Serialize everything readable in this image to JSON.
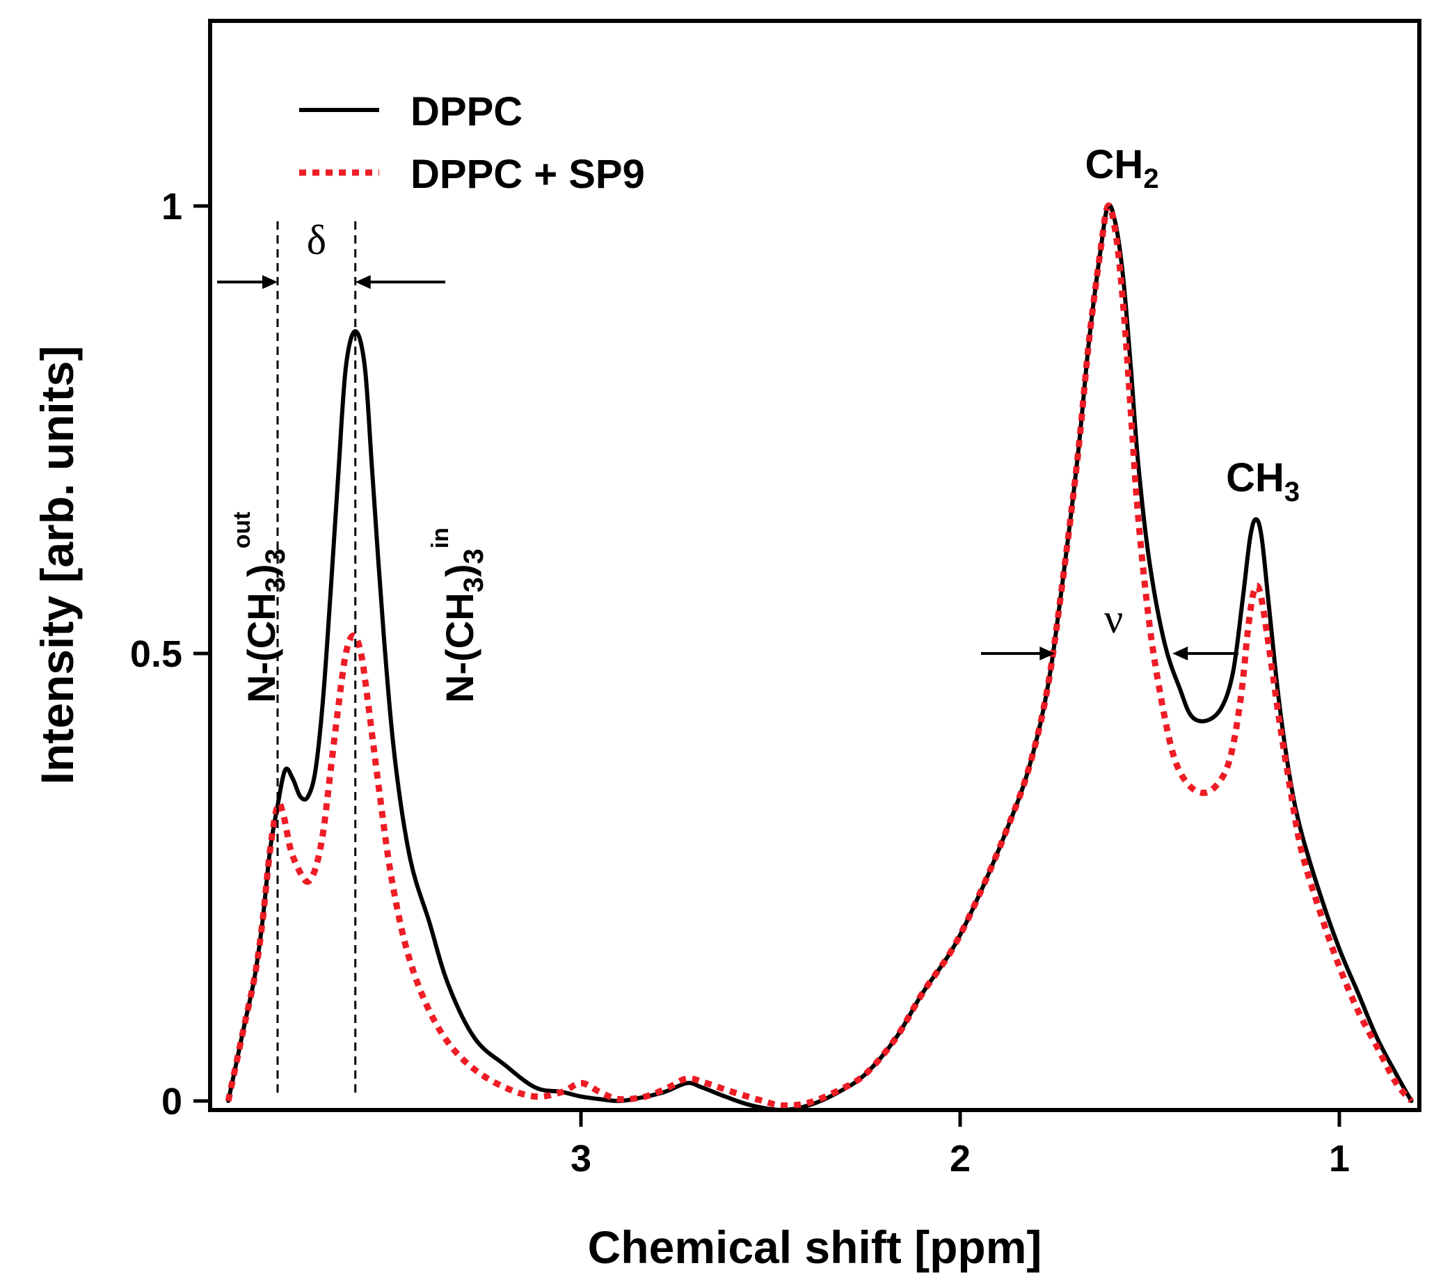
{
  "chart_data": {
    "type": "line",
    "xlabel": "Chemical shift [ppm]",
    "ylabel": "Intensity [arb. units]",
    "xlim": [
      4.0,
      0.8
    ],
    "ylim": [
      -0.02,
      1.2
    ],
    "x_reversed": true,
    "xticks": [
      3,
      2,
      1
    ],
    "xtick_labels": [
      "3",
      "2",
      "1"
    ],
    "yticks": [
      0,
      0.5,
      1
    ],
    "ytick_labels": [
      "0",
      "0.5",
      "1"
    ],
    "legend_position": "top-left",
    "series": [
      {
        "name": "DPPC",
        "color": "#000000",
        "style": "solid",
        "points": [
          [
            3.93,
            0.0
          ],
          [
            3.89,
            0.08
          ],
          [
            3.86,
            0.14
          ],
          [
            3.84,
            0.2
          ],
          [
            3.82,
            0.28
          ],
          [
            3.8,
            0.33
          ],
          [
            3.78,
            0.37
          ],
          [
            3.76,
            0.36
          ],
          [
            3.74,
            0.34
          ],
          [
            3.72,
            0.34
          ],
          [
            3.7,
            0.37
          ],
          [
            3.68,
            0.45
          ],
          [
            3.66,
            0.57
          ],
          [
            3.64,
            0.7
          ],
          [
            3.62,
            0.82
          ],
          [
            3.595,
            0.86
          ],
          [
            3.57,
            0.82
          ],
          [
            3.55,
            0.7
          ],
          [
            3.52,
            0.52
          ],
          [
            3.49,
            0.38
          ],
          [
            3.45,
            0.27
          ],
          [
            3.4,
            0.2
          ],
          [
            3.35,
            0.13
          ],
          [
            3.28,
            0.07
          ],
          [
            3.2,
            0.04
          ],
          [
            3.12,
            0.015
          ],
          [
            3.05,
            0.01
          ],
          [
            3.0,
            0.005
          ],
          [
            2.95,
            0.002
          ],
          [
            2.9,
            0.0
          ],
          [
            2.85,
            0.003
          ],
          [
            2.78,
            0.01
          ],
          [
            2.72,
            0.02
          ],
          [
            2.68,
            0.015
          ],
          [
            2.62,
            0.005
          ],
          [
            2.55,
            -0.005
          ],
          [
            2.47,
            -0.01
          ],
          [
            2.4,
            -0.005
          ],
          [
            2.32,
            0.01
          ],
          [
            2.25,
            0.03
          ],
          [
            2.17,
            0.07
          ],
          [
            2.1,
            0.12
          ],
          [
            2.02,
            0.17
          ],
          [
            1.95,
            0.23
          ],
          [
            1.88,
            0.3
          ],
          [
            1.82,
            0.37
          ],
          [
            1.77,
            0.46
          ],
          [
            1.73,
            0.58
          ],
          [
            1.69,
            0.72
          ],
          [
            1.66,
            0.85
          ],
          [
            1.63,
            0.95
          ],
          [
            1.61,
            1.0
          ],
          [
            1.59,
            0.98
          ],
          [
            1.57,
            0.92
          ],
          [
            1.55,
            0.82
          ],
          [
            1.53,
            0.71
          ],
          [
            1.5,
            0.6
          ],
          [
            1.46,
            0.51
          ],
          [
            1.42,
            0.46
          ],
          [
            1.39,
            0.43
          ],
          [
            1.35,
            0.425
          ],
          [
            1.31,
            0.44
          ],
          [
            1.28,
            0.48
          ],
          [
            1.255,
            0.56
          ],
          [
            1.235,
            0.63
          ],
          [
            1.22,
            0.65
          ],
          [
            1.205,
            0.63
          ],
          [
            1.185,
            0.55
          ],
          [
            1.16,
            0.45
          ],
          [
            1.13,
            0.36
          ],
          [
            1.1,
            0.3
          ],
          [
            1.05,
            0.23
          ],
          [
            1.0,
            0.17
          ],
          [
            0.95,
            0.12
          ],
          [
            0.9,
            0.07
          ],
          [
            0.85,
            0.03
          ],
          [
            0.81,
            0.0
          ]
        ]
      },
      {
        "name": "DPPC + SP9",
        "color": "#ee1c25",
        "style": "dotted",
        "points": [
          [
            3.93,
            0.0
          ],
          [
            3.89,
            0.08
          ],
          [
            3.86,
            0.14
          ],
          [
            3.84,
            0.2
          ],
          [
            3.82,
            0.28
          ],
          [
            3.8,
            0.33
          ],
          [
            3.785,
            0.32
          ],
          [
            3.765,
            0.28
          ],
          [
            3.74,
            0.255
          ],
          [
            3.72,
            0.245
          ],
          [
            3.7,
            0.26
          ],
          [
            3.68,
            0.3
          ],
          [
            3.66,
            0.37
          ],
          [
            3.64,
            0.44
          ],
          [
            3.62,
            0.5
          ],
          [
            3.6,
            0.52
          ],
          [
            3.58,
            0.5
          ],
          [
            3.56,
            0.44
          ],
          [
            3.53,
            0.34
          ],
          [
            3.5,
            0.25
          ],
          [
            3.46,
            0.17
          ],
          [
            3.41,
            0.11
          ],
          [
            3.35,
            0.065
          ],
          [
            3.28,
            0.035
          ],
          [
            3.2,
            0.015
          ],
          [
            3.12,
            0.005
          ],
          [
            3.05,
            0.01
          ],
          [
            3.0,
            0.02
          ],
          [
            2.95,
            0.01
          ],
          [
            2.9,
            0.002
          ],
          [
            2.83,
            0.005
          ],
          [
            2.77,
            0.015
          ],
          [
            2.72,
            0.025
          ],
          [
            2.67,
            0.02
          ],
          [
            2.6,
            0.01
          ],
          [
            2.52,
            0.0
          ],
          [
            2.47,
            -0.005
          ],
          [
            2.4,
            -0.002
          ],
          [
            2.32,
            0.012
          ],
          [
            2.25,
            0.03
          ],
          [
            2.17,
            0.07
          ],
          [
            2.1,
            0.12
          ],
          [
            2.02,
            0.17
          ],
          [
            1.95,
            0.23
          ],
          [
            1.88,
            0.3
          ],
          [
            1.82,
            0.37
          ],
          [
            1.77,
            0.46
          ],
          [
            1.73,
            0.58
          ],
          [
            1.69,
            0.72
          ],
          [
            1.66,
            0.85
          ],
          [
            1.63,
            0.95
          ],
          [
            1.61,
            1.0
          ],
          [
            1.59,
            0.97
          ],
          [
            1.57,
            0.89
          ],
          [
            1.55,
            0.77
          ],
          [
            1.53,
            0.65
          ],
          [
            1.5,
            0.53
          ],
          [
            1.47,
            0.45
          ],
          [
            1.44,
            0.39
          ],
          [
            1.41,
            0.36
          ],
          [
            1.37,
            0.345
          ],
          [
            1.33,
            0.35
          ],
          [
            1.29,
            0.38
          ],
          [
            1.26,
            0.45
          ],
          [
            1.24,
            0.53
          ],
          [
            1.225,
            0.57
          ],
          [
            1.21,
            0.57
          ],
          [
            1.19,
            0.52
          ],
          [
            1.16,
            0.43
          ],
          [
            1.13,
            0.35
          ],
          [
            1.1,
            0.28
          ],
          [
            1.05,
            0.21
          ],
          [
            1.0,
            0.15
          ],
          [
            0.95,
            0.1
          ],
          [
            0.9,
            0.06
          ],
          [
            0.85,
            0.02
          ],
          [
            0.81,
            0.0
          ]
        ]
      }
    ],
    "annotations": {
      "peak_ch2": {
        "base": "CH",
        "sub": "2",
        "x": 1.61,
        "y": 1.0
      },
      "peak_ch3": {
        "base": "CH",
        "sub": "3",
        "x": 1.22,
        "y": 0.65
      },
      "delta_symbol": "δ",
      "nu_symbol": "ν",
      "delta_lines_x": [
        3.8,
        3.595
      ],
      "delta_arrow_y": 0.915,
      "nu_arrow_y": 0.5,
      "nu_arrow_x": [
        1.75,
        1.44
      ],
      "label_out": {
        "text": "N-(CH",
        "sub1": "3",
        "mid": ")",
        "sub2": "3",
        "sup": "out"
      },
      "label_in": {
        "text": "N-(CH",
        "sub1": "3",
        "mid": ")",
        "sub2": "3",
        "sup": "in"
      }
    }
  }
}
